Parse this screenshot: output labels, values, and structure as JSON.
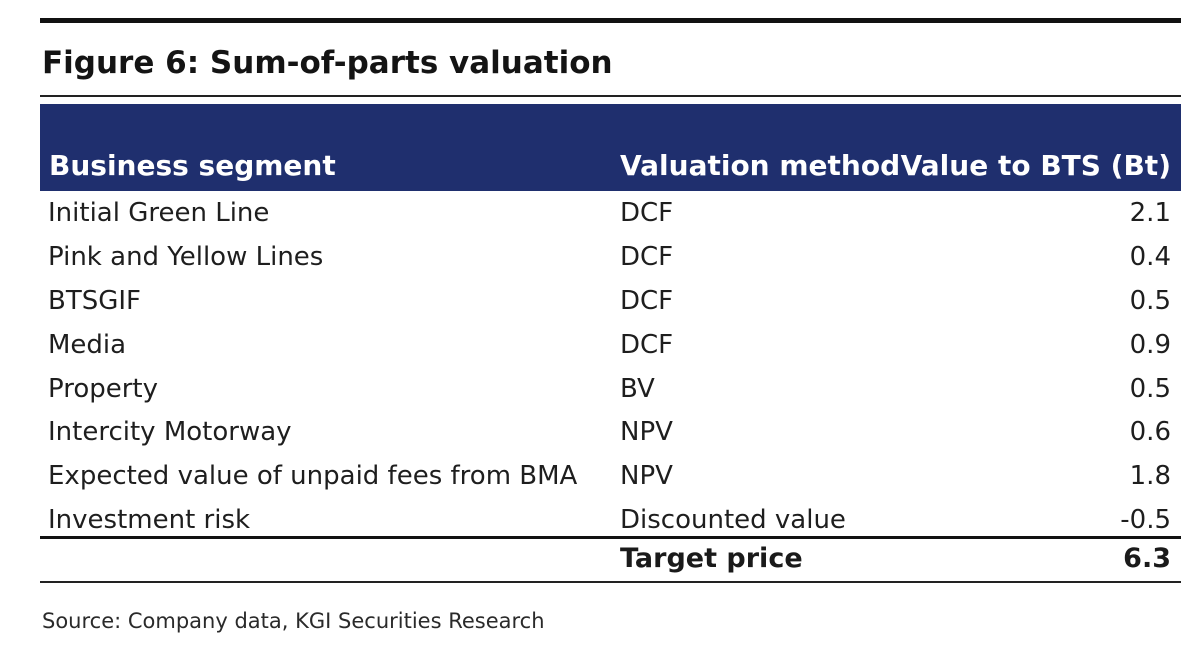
{
  "figure": {
    "title": "Figure 6: Sum-of-parts valuation",
    "source": "Source: Company data, KGI Securities Research"
  },
  "table": {
    "headers": {
      "segment": "Business segment",
      "method": "Valuation method",
      "value": "Value to BTS (Bt)"
    },
    "rows": [
      {
        "segment": "Initial Green Line",
        "method": "DCF",
        "value": "2.1"
      },
      {
        "segment": "Pink and Yellow Lines",
        "method": "DCF",
        "value": "0.4"
      },
      {
        "segment": "BTSGIF",
        "method": "DCF",
        "value": "0.5"
      },
      {
        "segment": "Media",
        "method": "DCF",
        "value": "0.9"
      },
      {
        "segment": "Property",
        "method": "BV",
        "value": "0.5"
      },
      {
        "segment": "Intercity Motorway",
        "method": "NPV",
        "value": "0.6"
      },
      {
        "segment": "Expected value of unpaid fees from BMA",
        "method": "NPV",
        "value": "1.8"
      },
      {
        "segment": "Investment risk",
        "method": "Discounted value",
        "value": "-0.5"
      }
    ],
    "total": {
      "label": "Target price",
      "value": "6.3"
    }
  },
  "colors": {
    "header_bg": "#1f2f6e",
    "header_text": "#ffffff",
    "rule": "#111111"
  }
}
